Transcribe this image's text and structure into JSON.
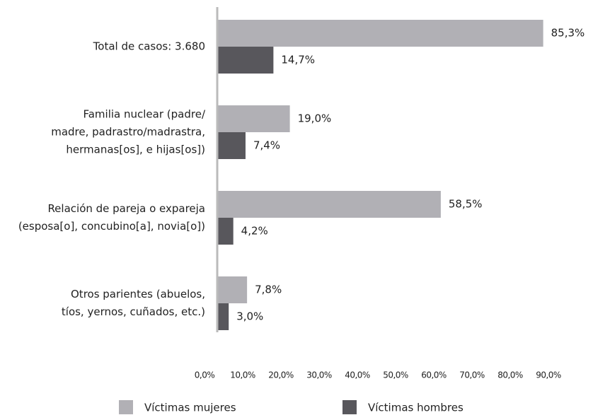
{
  "chart_data": {
    "type": "barh",
    "categories": [
      [
        "Total de casos: 3.680"
      ],
      [
        "Familia nuclear (padre/",
        "madre, padrastro/madrastra,",
        "hermanas[os], e hijas[os])"
      ],
      [
        "Relación de pareja o expareja",
        "(esposa[o], concubino[a], novia[o])"
      ],
      [
        "Otros parientes (abuelos,",
        "tíos, yernos, cuñados, etc.)"
      ]
    ],
    "series": [
      {
        "name": "Víctimas mujeres",
        "color": "#b1b0b5",
        "values": [
          85.3,
          19.0,
          58.5,
          7.8
        ],
        "value_labels": [
          "85,3%",
          "19,0%",
          "58,5%",
          "7,8%"
        ]
      },
      {
        "name": "Víctimas hombres",
        "color": "#58575c",
        "values": [
          14.7,
          7.4,
          4.2,
          3.0
        ],
        "value_labels": [
          "14,7%",
          "7,4%",
          "4,2%",
          "3,0%"
        ]
      }
    ],
    "xlim": [
      0,
      90
    ],
    "xticks": [
      {
        "value": 0,
        "label": "0,0%"
      },
      {
        "value": 10,
        "label": "10,0%"
      },
      {
        "value": 20,
        "label": "20,0%"
      },
      {
        "value": 30,
        "label": "30,0%"
      },
      {
        "value": 40,
        "label": "40,0%"
      },
      {
        "value": 50,
        "label": "50,0%"
      },
      {
        "value": 60,
        "label": "60,0%"
      },
      {
        "value": 70,
        "label": "70,0%"
      },
      {
        "value": 80,
        "label": "80,0%"
      },
      {
        "value": 90,
        "label": "90,0%"
      }
    ],
    "grid": false,
    "legend": "bottom"
  }
}
